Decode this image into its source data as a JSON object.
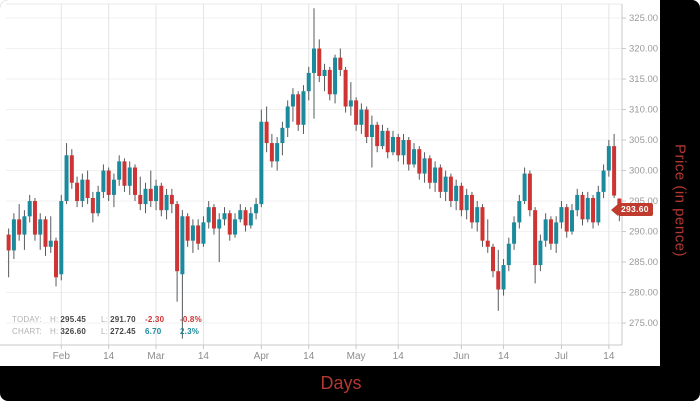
{
  "colors": {
    "up": "#1a8a9c",
    "down": "#ce3433",
    "wick": "#565a5d",
    "grid_v": "#e4e4e4",
    "grid_h": "#f1f1f1",
    "axis_line": "#c8c8c8",
    "tick_text": "#9a9a9a",
    "tag_bg": "#bf3b2d",
    "axis_title": "#b23831",
    "frame_bg": "#000000",
    "panel_bg": "#ffffff"
  },
  "last_price": {
    "label": "293.60",
    "value": 293.6
  },
  "legend": {
    "rows": [
      {
        "name": "TODAY:",
        "h_label": "H:",
        "h": "295.45",
        "l_label": "L:",
        "l": "291.70",
        "change": "-2.30",
        "pct": "-0.8%",
        "direction": "neg"
      },
      {
        "name": "CHART:",
        "h_label": "H:",
        "h": "326.60",
        "l_label": "L:",
        "l": "272.45",
        "change": "6.70",
        "pct": "2.3%",
        "direction": "pos"
      }
    ]
  },
  "chart_data": {
    "type": "candlestick",
    "title": "",
    "xlabel": "Days",
    "ylabel": "Price (in pence)",
    "ylim": [
      271.4,
      327.3
    ],
    "grid": true,
    "legend_position": "bottom-left",
    "today": {
      "high": 295.45,
      "low": 291.7,
      "change": -2.3,
      "change_pct": -0.8
    },
    "chart_stats": {
      "high": 326.6,
      "low": 272.45,
      "change": 6.7,
      "change_pct": 2.3
    },
    "y_ticks": [
      {
        "value": 325,
        "label": "325.00"
      },
      {
        "value": 320,
        "label": "320.00"
      },
      {
        "value": 315,
        "label": "315.00"
      },
      {
        "value": 310,
        "label": "310.00"
      },
      {
        "value": 305,
        "label": "305.00"
      },
      {
        "value": 300,
        "label": "300.00"
      },
      {
        "value": 295,
        "label": "295.00"
      },
      {
        "value": 290,
        "label": "290.00"
      },
      {
        "value": 285,
        "label": "285.00"
      },
      {
        "value": 280,
        "label": "280.00"
      },
      {
        "value": 275,
        "label": "275.00"
      }
    ],
    "x_ticks": [
      {
        "label": "Feb",
        "index": 10
      },
      {
        "label": "14",
        "index": 19
      },
      {
        "label": "Mar",
        "index": 28
      },
      {
        "label": "14",
        "index": 37
      },
      {
        "label": "Apr",
        "index": 48
      },
      {
        "label": "14",
        "index": 57
      },
      {
        "label": "May",
        "index": 66
      },
      {
        "label": "14",
        "index": 74
      },
      {
        "label": "Jun",
        "index": 86
      },
      {
        "label": "14",
        "index": 94
      },
      {
        "label": "Jul",
        "index": 105
      },
      {
        "label": "14",
        "index": 114
      }
    ],
    "ohlc": [
      [
        289.5,
        290.5,
        282.5,
        286.9
      ],
      [
        286.9,
        293.0,
        285.5,
        292.0
      ],
      [
        292.0,
        294.5,
        288.5,
        289.5
      ],
      [
        289.5,
        293.5,
        287.0,
        292.5
      ],
      [
        292.5,
        296.0,
        291.5,
        295.0
      ],
      [
        295.0,
        295.5,
        288.5,
        289.5
      ],
      [
        289.5,
        293.0,
        287.0,
        292.0
      ],
      [
        292.0,
        292.5,
        286.0,
        287.5
      ],
      [
        287.5,
        292.5,
        286.5,
        288.5
      ],
      [
        288.5,
        289.0,
        281.0,
        282.5
      ],
      [
        283.0,
        296.0,
        282.0,
        295.0
      ],
      [
        295.0,
        304.5,
        294.5,
        302.5
      ],
      [
        302.5,
        303.5,
        297.0,
        298.0
      ],
      [
        298.0,
        299.0,
        294.0,
        295.0
      ],
      [
        295.0,
        299.5,
        294.0,
        298.5
      ],
      [
        298.5,
        300.0,
        294.5,
        295.5
      ],
      [
        295.5,
        296.5,
        291.5,
        293.0
      ],
      [
        293.0,
        297.5,
        292.5,
        296.5
      ],
      [
        296.5,
        301.0,
        295.5,
        300.0
      ],
      [
        300.0,
        300.5,
        295.0,
        296.0
      ],
      [
        296.0,
        299.5,
        294.0,
        298.5
      ],
      [
        298.5,
        302.5,
        297.5,
        301.5
      ],
      [
        301.5,
        302.0,
        296.5,
        297.5
      ],
      [
        297.5,
        301.5,
        296.0,
        300.5
      ],
      [
        300.5,
        301.0,
        295.0,
        296.0
      ],
      [
        296.0,
        299.0,
        293.5,
        294.5
      ],
      [
        294.5,
        298.0,
        293.0,
        297.0
      ],
      [
        297.0,
        300.0,
        294.0,
        295.0
      ],
      [
        295.0,
        298.5,
        293.5,
        297.5
      ],
      [
        297.5,
        298.0,
        292.5,
        293.5
      ],
      [
        293.5,
        297.0,
        292.0,
        296.0
      ],
      [
        296.0,
        297.0,
        293.0,
        294.5
      ],
      [
        294.5,
        295.0,
        278.5,
        283.5
      ],
      [
        283.0,
        293.5,
        272.45,
        292.5
      ],
      [
        292.5,
        293.0,
        287.5,
        288.5
      ],
      [
        288.5,
        292.0,
        286.5,
        291.0
      ],
      [
        291.0,
        292.0,
        287.0,
        288.0
      ],
      [
        288.0,
        292.5,
        287.5,
        291.5
      ],
      [
        291.5,
        295.0,
        290.5,
        294.0
      ],
      [
        294.0,
        294.5,
        289.5,
        290.5
      ],
      [
        290.5,
        293.0,
        285.0,
        292.0
      ],
      [
        292.0,
        294.0,
        291.0,
        293.0
      ],
      [
        293.0,
        293.5,
        288.5,
        289.5
      ],
      [
        289.5,
        293.0,
        289.0,
        292.0
      ],
      [
        292.0,
        294.5,
        291.5,
        293.5
      ],
      [
        293.5,
        294.0,
        290.0,
        291.0
      ],
      [
        291.0,
        294.0,
        290.5,
        293.0
      ],
      [
        293.0,
        295.5,
        292.0,
        294.5
      ],
      [
        294.5,
        310.0,
        294.0,
        308.0
      ],
      [
        308.0,
        310.5,
        303.0,
        304.5
      ],
      [
        304.5,
        306.0,
        300.5,
        301.5
      ],
      [
        301.5,
        305.5,
        300.0,
        304.5
      ],
      [
        304.5,
        308.0,
        302.5,
        307.0
      ],
      [
        307.0,
        311.5,
        305.5,
        310.5
      ],
      [
        310.5,
        313.5,
        308.0,
        312.5
      ],
      [
        312.5,
        313.0,
        306.5,
        307.5
      ],
      [
        307.5,
        314.0,
        306.0,
        313.0
      ],
      [
        313.0,
        317.0,
        311.5,
        316.0
      ],
      [
        316.0,
        326.6,
        308.5,
        320.0
      ],
      [
        320.0,
        321.5,
        314.5,
        315.5
      ],
      [
        315.5,
        317.5,
        313.0,
        316.5
      ],
      [
        316.5,
        317.0,
        311.5,
        312.5
      ],
      [
        312.5,
        319.0,
        311.0,
        318.5
      ],
      [
        318.5,
        320.0,
        315.5,
        316.5
      ],
      [
        316.5,
        317.0,
        309.5,
        310.5
      ],
      [
        310.5,
        314.5,
        309.0,
        311.5
      ],
      [
        311.5,
        312.0,
        306.5,
        307.5
      ],
      [
        307.5,
        311.0,
        306.0,
        310.0
      ],
      [
        310.0,
        310.5,
        304.5,
        305.5
      ],
      [
        305.5,
        309.0,
        300.5,
        307.5
      ],
      [
        307.5,
        308.0,
        303.0,
        304.0
      ],
      [
        304.0,
        307.5,
        303.5,
        306.5
      ],
      [
        306.5,
        307.0,
        302.0,
        303.0
      ],
      [
        303.0,
        306.5,
        302.5,
        305.5
      ],
      [
        305.5,
        306.0,
        301.5,
        302.5
      ],
      [
        302.5,
        306.0,
        301.0,
        305.0
      ],
      [
        305.0,
        305.5,
        300.0,
        301.0
      ],
      [
        301.0,
        304.5,
        300.5,
        303.5
      ],
      [
        303.5,
        304.0,
        298.5,
        299.5
      ],
      [
        299.5,
        303.0,
        298.0,
        302.0
      ],
      [
        302.0,
        302.5,
        297.0,
        298.0
      ],
      [
        298.0,
        301.5,
        296.5,
        300.5
      ],
      [
        300.5,
        301.0,
        295.5,
        296.5
      ],
      [
        296.5,
        300.0,
        295.0,
        299.0
      ],
      [
        299.0,
        299.5,
        294.0,
        295.0
      ],
      [
        295.0,
        298.5,
        293.5,
        297.5
      ],
      [
        297.5,
        298.0,
        292.5,
        293.5
      ],
      [
        293.5,
        297.0,
        292.0,
        296.0
      ],
      [
        296.0,
        296.5,
        290.5,
        291.5
      ],
      [
        291.5,
        295.0,
        290.0,
        294.0
      ],
      [
        294.0,
        294.5,
        287.5,
        288.5
      ],
      [
        288.5,
        292.0,
        286.5,
        287.5
      ],
      [
        287.5,
        288.0,
        282.5,
        283.5
      ],
      [
        283.5,
        287.0,
        277.0,
        280.5
      ],
      [
        280.5,
        285.5,
        279.5,
        284.5
      ],
      [
        284.5,
        289.0,
        283.5,
        288.0
      ],
      [
        288.0,
        292.5,
        287.0,
        291.5
      ],
      [
        291.5,
        296.0,
        290.5,
        295.0
      ],
      [
        295.0,
        300.5,
        294.5,
        299.5
      ],
      [
        299.5,
        300.0,
        292.5,
        293.5
      ],
      [
        293.5,
        294.0,
        281.5,
        284.5
      ],
      [
        284.5,
        289.5,
        283.5,
        288.5
      ],
      [
        288.5,
        293.0,
        287.5,
        292.0
      ],
      [
        292.0,
        292.5,
        287.0,
        288.0
      ],
      [
        288.0,
        292.5,
        286.5,
        291.5
      ],
      [
        291.5,
        295.0,
        290.5,
        294.0
      ],
      [
        294.0,
        294.5,
        289.0,
        290.0
      ],
      [
        290.0,
        294.5,
        289.5,
        293.5
      ],
      [
        293.5,
        297.0,
        292.5,
        296.0
      ],
      [
        296.0,
        296.5,
        291.0,
        292.0
      ],
      [
        292.0,
        296.5,
        291.5,
        295.5
      ],
      [
        295.5,
        296.0,
        290.5,
        291.5
      ],
      [
        291.5,
        297.5,
        291.0,
        296.5
      ],
      [
        296.5,
        301.0,
        295.5,
        300.0
      ],
      [
        300.0,
        305.0,
        299.0,
        304.0
      ],
      [
        304.0,
        306.0,
        295.5,
        295.9
      ],
      [
        295.4,
        295.45,
        291.7,
        293.6
      ]
    ]
  }
}
